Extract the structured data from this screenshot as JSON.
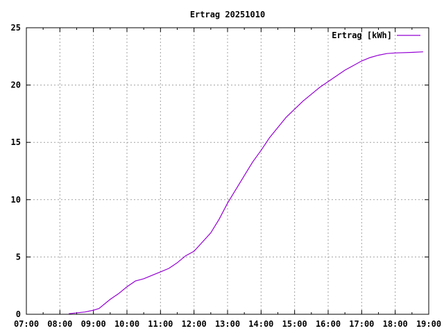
{
  "chart_data": {
    "type": "line",
    "title": "Ertrag 20251010",
    "xlabel": "",
    "ylabel": "",
    "xlim": [
      "07:00",
      "19:00"
    ],
    "ylim": [
      0,
      25
    ],
    "x_ticks": [
      "07:00",
      "08:00",
      "09:00",
      "10:00",
      "11:00",
      "12:00",
      "13:00",
      "14:00",
      "15:00",
      "16:00",
      "17:00",
      "18:00",
      "19:00"
    ],
    "y_ticks": [
      0,
      5,
      10,
      15,
      20,
      25
    ],
    "grid": true,
    "legend_position": "top-right",
    "series": [
      {
        "name": "Ertrag [kWh]",
        "color": "#9400d3",
        "x": [
          "08:16",
          "08:45",
          "09:00",
          "09:10",
          "09:30",
          "09:45",
          "10:00",
          "10:15",
          "10:30",
          "10:45",
          "11:00",
          "11:15",
          "11:30",
          "11:45",
          "12:00",
          "12:15",
          "12:30",
          "12:45",
          "13:00",
          "13:15",
          "13:30",
          "13:45",
          "14:00",
          "14:15",
          "14:30",
          "14:45",
          "15:00",
          "15:15",
          "15:30",
          "15:45",
          "16:00",
          "16:15",
          "16:30",
          "16:45",
          "17:00",
          "17:15",
          "17:30",
          "17:45",
          "18:00",
          "18:30",
          "18:50"
        ],
        "y": [
          0.05,
          0.2,
          0.35,
          0.5,
          1.3,
          1.8,
          2.4,
          2.9,
          3.1,
          3.4,
          3.7,
          4.0,
          4.5,
          5.1,
          5.5,
          6.3,
          7.1,
          8.3,
          9.7,
          10.9,
          12.1,
          13.3,
          14.3,
          15.4,
          16.3,
          17.2,
          17.9,
          18.6,
          19.2,
          19.8,
          20.3,
          20.8,
          21.3,
          21.7,
          22.1,
          22.4,
          22.6,
          22.75,
          22.8,
          22.85,
          22.9
        ]
      }
    ]
  }
}
